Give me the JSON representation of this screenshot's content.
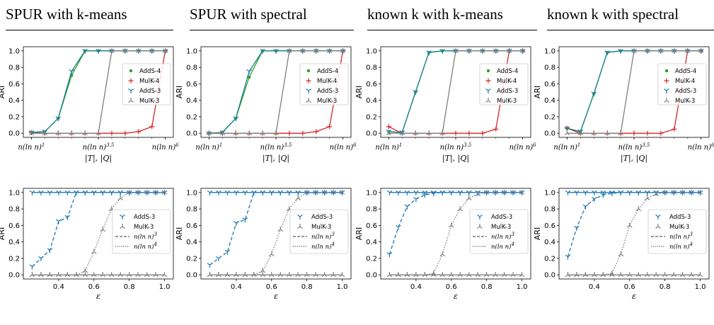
{
  "titles": [
    "SPUR with k-means",
    "SPUR with spectral",
    "known k with k-means",
    "known k with spectral"
  ],
  "colors": {
    "adds4": "#2ca02c",
    "mulk4": "#d62728",
    "adds3": "#1f77b4",
    "mulk3": "#7f7f7f",
    "teal": "#17808a"
  },
  "chart_data": [
    {
      "type": "line",
      "row": 0,
      "col": 0,
      "xlabel": "|T|, |Q|",
      "ylabel": "ARI",
      "xticks": [
        "n(ln n)^1",
        "n(ln n)^3.5",
        "n(ln n)^6"
      ],
      "yticks": [
        "0.0",
        "0.2",
        "0.4",
        "0.6",
        "0.8",
        "1.0"
      ],
      "legend_placement": "center-right",
      "x": [
        1,
        1.5,
        2,
        2.5,
        3,
        3.5,
        4,
        4.5,
        5,
        5.5,
        6
      ],
      "series": [
        {
          "name": "AddS-4",
          "values": [
            0.01,
            0.02,
            0.18,
            0.7,
            1,
            1,
            1,
            1,
            1,
            1,
            1
          ]
        },
        {
          "name": "MulK-4",
          "values": [
            0.01,
            0,
            0,
            0,
            0,
            0,
            0,
            0,
            0.02,
            0.08,
            1
          ]
        },
        {
          "name": "AddS-3",
          "values": [
            0.01,
            0.02,
            0.18,
            0.75,
            1,
            1,
            1,
            1,
            1,
            1,
            1
          ]
        },
        {
          "name": "MulK-3",
          "values": [
            0,
            0,
            0,
            0,
            0,
            0,
            1,
            1,
            1,
            1,
            1
          ]
        }
      ]
    },
    {
      "type": "line",
      "row": 0,
      "col": 1,
      "xlabel": "|T|, |Q|",
      "ylabel": "ARI",
      "xticks": [
        "n(ln n)^1",
        "n(ln n)^3.5",
        "n(ln n)^6"
      ],
      "yticks": [
        "0.0",
        "0.2",
        "0.4",
        "0.6",
        "0.8",
        "1.0"
      ],
      "legend_placement": "center-right",
      "x": [
        1,
        1.5,
        2,
        2.5,
        3,
        3.5,
        4,
        4.5,
        5,
        5.5,
        6
      ],
      "series": [
        {
          "name": "AddS-4",
          "values": [
            0,
            0.01,
            0.18,
            0.68,
            1,
            1,
            1,
            1,
            1,
            1,
            1
          ]
        },
        {
          "name": "MulK-4",
          "values": [
            0,
            0,
            0,
            0,
            0,
            0,
            0,
            0,
            0.02,
            0.08,
            1
          ]
        },
        {
          "name": "AddS-3",
          "values": [
            0,
            0.01,
            0.18,
            0.75,
            1,
            1,
            1,
            1,
            1,
            1,
            1
          ]
        },
        {
          "name": "MulK-3",
          "values": [
            0,
            0,
            0,
            0,
            0,
            0,
            1,
            1,
            1,
            1,
            1
          ]
        }
      ]
    },
    {
      "type": "line",
      "row": 0,
      "col": 2,
      "xlabel": "|T|, |Q|",
      "ylabel": "ARI",
      "xticks": [
        "n(ln n)^1",
        "n(ln n)^3.5",
        "n(ln n)^6"
      ],
      "yticks": [
        "0.0",
        "0.2",
        "0.4",
        "0.6",
        "0.8",
        "1.0"
      ],
      "legend_placement": "center-right",
      "x": [
        1,
        1.5,
        2,
        2.5,
        3,
        3.5,
        4,
        4.5,
        5,
        5.5,
        6
      ],
      "series": [
        {
          "name": "AddS-4",
          "values": [
            0.02,
            0.01,
            0.5,
            0.98,
            1,
            1,
            1,
            1,
            1,
            1,
            1
          ]
        },
        {
          "name": "MulK-4",
          "values": [
            0.08,
            0,
            0,
            0,
            0,
            0,
            0,
            0,
            0.05,
            1,
            1
          ]
        },
        {
          "name": "AddS-3",
          "values": [
            0.02,
            0.01,
            0.5,
            0.98,
            1,
            1,
            1,
            1,
            1,
            1,
            1
          ]
        },
        {
          "name": "MulK-3",
          "values": [
            0,
            0,
            0,
            0,
            0,
            1,
            1,
            1,
            1,
            1,
            1
          ]
        }
      ]
    },
    {
      "type": "line",
      "row": 0,
      "col": 3,
      "xlabel": "|T|, |Q|",
      "ylabel": "ARI",
      "xticks": [
        "n(ln n)^1",
        "n(ln n)^3.5",
        "n(ln n)^6"
      ],
      "yticks": [
        "0.0",
        "0.2",
        "0.4",
        "0.6",
        "0.8",
        "1.0"
      ],
      "legend_placement": "center-right",
      "x": [
        1,
        1.5,
        2,
        2.5,
        3,
        3.5,
        4,
        4.5,
        5,
        5.5,
        6
      ],
      "series": [
        {
          "name": "AddS-4",
          "values": [
            0.06,
            0.02,
            0.48,
            0.98,
            1,
            1,
            1,
            1,
            1,
            1,
            1
          ]
        },
        {
          "name": "MulK-4",
          "values": [
            0.06,
            0,
            0,
            0,
            0,
            0,
            0,
            0,
            0.05,
            1,
            1
          ]
        },
        {
          "name": "AddS-3",
          "values": [
            0.06,
            0.02,
            0.48,
            0.98,
            1,
            1,
            1,
            1,
            1,
            1,
            1
          ]
        },
        {
          "name": "MulK-3",
          "values": [
            0,
            0,
            0,
            0,
            0,
            1,
            1,
            1,
            1,
            1,
            1
          ]
        }
      ]
    },
    {
      "type": "line",
      "row": 1,
      "col": 0,
      "xlabel": "ε",
      "ylabel": "ARI",
      "xticks": [
        "0.4",
        "0.6",
        "0.8",
        "1.0"
      ],
      "yticks": [
        "0.0",
        "0.2",
        "0.4",
        "0.6",
        "0.8",
        "1.0"
      ],
      "legend_placement": "center-right",
      "xlim": [
        0.2,
        1.05
      ],
      "x": [
        0.25,
        0.3,
        0.35,
        0.4,
        0.45,
        0.5,
        0.55,
        0.6,
        0.65,
        0.7,
        0.75,
        0.8,
        0.85,
        0.9,
        0.95,
        1.0
      ],
      "series": [
        {
          "name": "AddS-3",
          "style": "dashed",
          "values": [
            0.1,
            0.2,
            0.3,
            0.65,
            0.7,
            1,
            1,
            1,
            1,
            1,
            1,
            1,
            1,
            1,
            1,
            1
          ]
        },
        {
          "name": "MulK-3",
          "style": "dotted",
          "values": [
            0,
            0,
            0,
            0,
            0,
            0,
            0.05,
            0.28,
            0.55,
            0.8,
            0.93,
            1,
            1,
            1,
            1,
            1
          ]
        },
        {
          "name": "AddS-3-top",
          "style": "solid",
          "values": [
            1,
            1,
            1,
            1,
            1,
            1,
            1,
            1,
            1,
            1,
            1,
            1,
            1,
            1,
            1,
            1
          ]
        },
        {
          "name": "MulK-3-bottom",
          "style": "solid",
          "values": [
            0,
            0,
            0,
            0,
            0,
            0,
            0,
            0,
            0,
            0,
            0,
            0,
            0,
            0,
            0,
            0
          ]
        }
      ],
      "legend": [
        "AddS-3",
        "MulK-3",
        "n(ln n)^3",
        "n(ln n)^4"
      ]
    },
    {
      "type": "line",
      "row": 1,
      "col": 1,
      "xlabel": "ε",
      "ylabel": "ARI",
      "xticks": [
        "0.4",
        "0.6",
        "0.8",
        "1.0"
      ],
      "yticks": [
        "0.0",
        "0.2",
        "0.4",
        "0.6",
        "0.8",
        "1.0"
      ],
      "legend_placement": "center-right",
      "xlim": [
        0.2,
        1.05
      ],
      "x": [
        0.25,
        0.3,
        0.35,
        0.4,
        0.45,
        0.5,
        0.55,
        0.6,
        0.65,
        0.7,
        0.75,
        0.8,
        0.85,
        0.9,
        0.95,
        1.0
      ],
      "series": [
        {
          "name": "AddS-3",
          "style": "dashed",
          "values": [
            0.12,
            0.2,
            0.28,
            0.63,
            0.67,
            1,
            1,
            1,
            1,
            1,
            1,
            1,
            1,
            1,
            1,
            1
          ]
        },
        {
          "name": "MulK-3",
          "style": "dotted",
          "values": [
            0,
            0,
            0,
            0,
            0,
            0,
            0.05,
            0.25,
            0.55,
            0.8,
            0.93,
            1,
            1,
            1,
            1,
            1
          ]
        },
        {
          "name": "AddS-3-top",
          "style": "solid",
          "values": [
            1,
            1,
            1,
            1,
            1,
            1,
            1,
            1,
            1,
            1,
            1,
            1,
            1,
            1,
            1,
            1
          ]
        },
        {
          "name": "MulK-3-bottom",
          "style": "solid",
          "values": [
            0,
            0,
            0,
            0,
            0,
            0,
            0,
            0,
            0,
            0,
            0,
            0,
            0,
            0,
            0,
            0
          ]
        }
      ],
      "legend": [
        "AddS-3",
        "MulK-3",
        "n(ln n)^3",
        "n(ln n)^4"
      ]
    },
    {
      "type": "line",
      "row": 1,
      "col": 2,
      "xlabel": "ε",
      "ylabel": "ARI",
      "xticks": [
        "0.4",
        "0.6",
        "0.8",
        "1.0"
      ],
      "yticks": [
        "0.0",
        "0.2",
        "0.4",
        "0.6",
        "0.8",
        "1.0"
      ],
      "legend_placement": "center-right",
      "xlim": [
        0.2,
        1.05
      ],
      "x": [
        0.25,
        0.3,
        0.35,
        0.4,
        0.45,
        0.5,
        0.55,
        0.6,
        0.65,
        0.7,
        0.75,
        0.8,
        0.85,
        0.9,
        0.95,
        1.0
      ],
      "series": [
        {
          "name": "AddS-3",
          "style": "dashed",
          "values": [
            0.25,
            0.58,
            0.83,
            0.92,
            0.97,
            0.99,
            1,
            1,
            1,
            1,
            1,
            1,
            1,
            1,
            1,
            1
          ]
        },
        {
          "name": "MulK-3",
          "style": "dotted",
          "values": [
            0,
            0,
            0,
            0,
            0,
            0.02,
            0.25,
            0.6,
            0.8,
            0.93,
            0.98,
            1,
            1,
            1,
            1,
            1
          ]
        },
        {
          "name": "AddS-3-top",
          "style": "solid",
          "values": [
            1,
            1,
            1,
            1,
            1,
            1,
            1,
            1,
            1,
            1,
            1,
            1,
            1,
            1,
            1,
            1
          ]
        },
        {
          "name": "MulK-3-bottom",
          "style": "solid",
          "values": [
            0,
            0,
            0,
            0,
            0,
            0,
            0,
            0,
            0,
            0,
            0,
            0,
            0,
            0,
            0,
            0
          ]
        }
      ],
      "legend": [
        "AddS-3",
        "MulK-3",
        "n(ln n)^3",
        "n(ln n)^4"
      ]
    },
    {
      "type": "line",
      "row": 1,
      "col": 3,
      "xlabel": "ε",
      "ylabel": "ARI",
      "xticks": [
        "0.4",
        "0.6",
        "0.8",
        "1.0"
      ],
      "yticks": [
        "0.0",
        "0.2",
        "0.4",
        "0.6",
        "0.8",
        "1.0"
      ],
      "legend_placement": "center-right",
      "xlim": [
        0.2,
        1.05
      ],
      "x": [
        0.25,
        0.3,
        0.35,
        0.4,
        0.45,
        0.5,
        0.55,
        0.6,
        0.65,
        0.7,
        0.75,
        0.8,
        0.85,
        0.9,
        0.95,
        1.0
      ],
      "series": [
        {
          "name": "AddS-3",
          "style": "dashed",
          "values": [
            0.22,
            0.57,
            0.83,
            0.92,
            0.97,
            0.99,
            1,
            1,
            1,
            1,
            1,
            1,
            1,
            1,
            1,
            1
          ]
        },
        {
          "name": "MulK-3",
          "style": "dotted",
          "values": [
            0,
            0,
            0,
            0,
            0,
            0.02,
            0.25,
            0.6,
            0.8,
            0.93,
            0.98,
            1,
            1,
            1,
            1,
            1
          ]
        },
        {
          "name": "AddS-3-top",
          "style": "solid",
          "values": [
            1,
            1,
            1,
            1,
            1,
            1,
            1,
            1,
            1,
            1,
            1,
            1,
            1,
            1,
            1,
            1
          ]
        },
        {
          "name": "MulK-3-bottom",
          "style": "solid",
          "values": [
            0,
            0,
            0,
            0,
            0,
            0,
            0,
            0,
            0,
            0,
            0,
            0,
            0,
            0,
            0,
            0
          ]
        }
      ],
      "legend": [
        "AddS-3",
        "MulK-3",
        "n(ln n)^3",
        "n(ln n)^4"
      ]
    }
  ]
}
